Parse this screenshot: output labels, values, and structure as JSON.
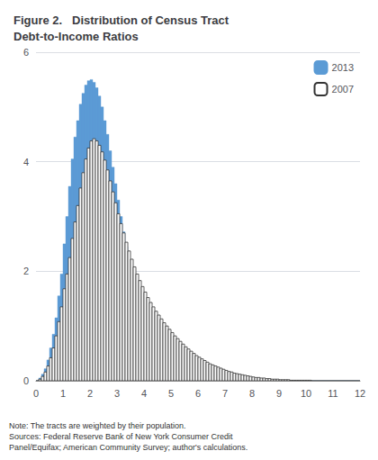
{
  "chart_data": {
    "type": "histogram",
    "title": "Figure 2.   Distribution of Census Tract\nDebt-to-Income Ratios",
    "annotations": [
      "Note: The tracts are weighted by their population.\nSources: Federal Reserve Bank of New York Consumer Credit\nPanel/Equifax; American Community Survey; author's calculations."
    ],
    "bins": [
      0,
      0.1,
      0.2,
      0.3,
      0.4,
      0.5,
      0.6,
      0.7,
      0.8,
      0.9,
      1,
      1.1,
      1.2,
      1.3,
      1.4,
      1.5,
      1.6,
      1.7,
      1.8,
      1.9,
      2,
      2.1,
      2.2,
      2.3,
      2.4,
      2.5,
      2.6,
      2.7,
      2.8,
      2.9,
      3,
      3.1,
      3.2,
      3.3,
      3.4,
      3.5,
      3.6,
      3.7,
      3.8,
      3.9,
      4,
      4.1,
      4.2,
      4.3,
      4.4,
      4.5,
      4.6,
      4.7,
      4.8,
      4.9,
      5,
      5.1,
      5.2,
      5.3,
      5.4,
      5.5,
      5.6,
      5.7,
      5.8,
      5.9,
      6,
      6.1,
      6.2,
      6.3,
      6.4,
      6.5,
      6.6,
      6.7,
      6.8,
      6.9,
      7,
      7.1,
      7.2,
      7.3,
      7.4,
      7.5,
      7.6,
      7.7,
      7.8,
      7.9,
      8,
      8.1,
      8.2,
      8.3,
      8.4,
      8.5,
      8.6,
      8.7,
      8.8,
      8.9,
      9,
      9.1,
      9.2,
      9.3,
      9.4,
      9.5,
      9.6,
      9.7,
      9.8,
      9.9,
      10,
      10.1,
      10.2,
      10.3,
      10.4,
      10.5,
      10.6,
      10.7,
      10.8,
      10.9,
      11,
      11.1,
      11.2,
      11.3,
      11.4,
      11.5,
      11.6,
      11.7,
      11.8,
      11.9,
      12
    ],
    "series": [
      {
        "name": "2013",
        "color": "#5b9bd5",
        "values": [
          0.0,
          0.05,
          0.12,
          0.22,
          0.38,
          0.6,
          0.85,
          1.15,
          1.55,
          1.95,
          2.5,
          3.0,
          3.55,
          4.05,
          4.45,
          4.75,
          5.05,
          5.25,
          5.4,
          5.48,
          5.5,
          5.45,
          5.35,
          5.2,
          5.0,
          4.75,
          4.5,
          4.2,
          3.9,
          3.6,
          3.3,
          3.0,
          2.72,
          2.45,
          2.2,
          1.97,
          1.75,
          1.55,
          1.38,
          1.22,
          1.08,
          0.95,
          0.83,
          0.72,
          0.62,
          0.53,
          0.45,
          0.38,
          0.32,
          0.27,
          0.22,
          0.18,
          0.15,
          0.12,
          0.1,
          0.08,
          0.06,
          0.05,
          0.04,
          0.03,
          0.02,
          0.01,
          0.01,
          0.0,
          0.0,
          0.0,
          0.0,
          0.0,
          0.0,
          0.0,
          0.0,
          0.0,
          0.0,
          0.0,
          0.0,
          0.0,
          0.0,
          0.0,
          0.0,
          0.0,
          0.0,
          0.0,
          0.0,
          0.0,
          0.0,
          0.0,
          0.0,
          0.0,
          0.0,
          0.0,
          0.0,
          0.0,
          0.0,
          0.0,
          0.0,
          0.0,
          0.0,
          0.0,
          0.0,
          0.0,
          0.0,
          0.0,
          0.0,
          0.0,
          0.0,
          0.0,
          0.0,
          0.0,
          0.0,
          0.0,
          0.0,
          0.0,
          0.0,
          0.0,
          0.0,
          0.0,
          0.0,
          0.0,
          0.0,
          0.0
        ]
      },
      {
        "name": "2007",
        "color": "#333333",
        "values": [
          0.0,
          0.03,
          0.08,
          0.16,
          0.27,
          0.42,
          0.6,
          0.82,
          1.08,
          1.35,
          1.68,
          1.95,
          2.25,
          2.6,
          2.9,
          3.2,
          3.52,
          3.8,
          4.05,
          4.25,
          4.38,
          4.42,
          4.38,
          4.3,
          4.18,
          4.03,
          3.85,
          3.65,
          3.45,
          3.25,
          3.05,
          2.87,
          2.7,
          2.53,
          2.37,
          2.22,
          2.08,
          1.95,
          1.83,
          1.72,
          1.62,
          1.52,
          1.43,
          1.35,
          1.27,
          1.2,
          1.13,
          1.06,
          1.0,
          0.94,
          0.88,
          0.82,
          0.77,
          0.72,
          0.67,
          0.62,
          0.58,
          0.54,
          0.5,
          0.46,
          0.43,
          0.4,
          0.37,
          0.34,
          0.31,
          0.29,
          0.27,
          0.25,
          0.23,
          0.21,
          0.19,
          0.17,
          0.16,
          0.14,
          0.13,
          0.12,
          0.11,
          0.1,
          0.09,
          0.08,
          0.07,
          0.06,
          0.06,
          0.05,
          0.05,
          0.04,
          0.04,
          0.03,
          0.03,
          0.03,
          0.02,
          0.02,
          0.02,
          0.02,
          0.01,
          0.01,
          0.01,
          0.01,
          0.01,
          0.01,
          0.01,
          0.01,
          0.0,
          0.0,
          0.0,
          0.0,
          0.0,
          0.0,
          0.0,
          0.0,
          0.0,
          0.0,
          0.0,
          0.0,
          0.0,
          0.0,
          0.0,
          0.0,
          0.0,
          0.0
        ]
      }
    ],
    "xlim": [
      0,
      12
    ],
    "xticks": [
      0,
      1,
      2,
      3,
      4,
      5,
      6,
      7,
      8,
      9,
      10,
      11,
      12
    ],
    "ylim": [
      0,
      6
    ],
    "yticks": [
      0,
      2,
      4,
      6
    ],
    "grid": true,
    "legend": "upper right"
  }
}
